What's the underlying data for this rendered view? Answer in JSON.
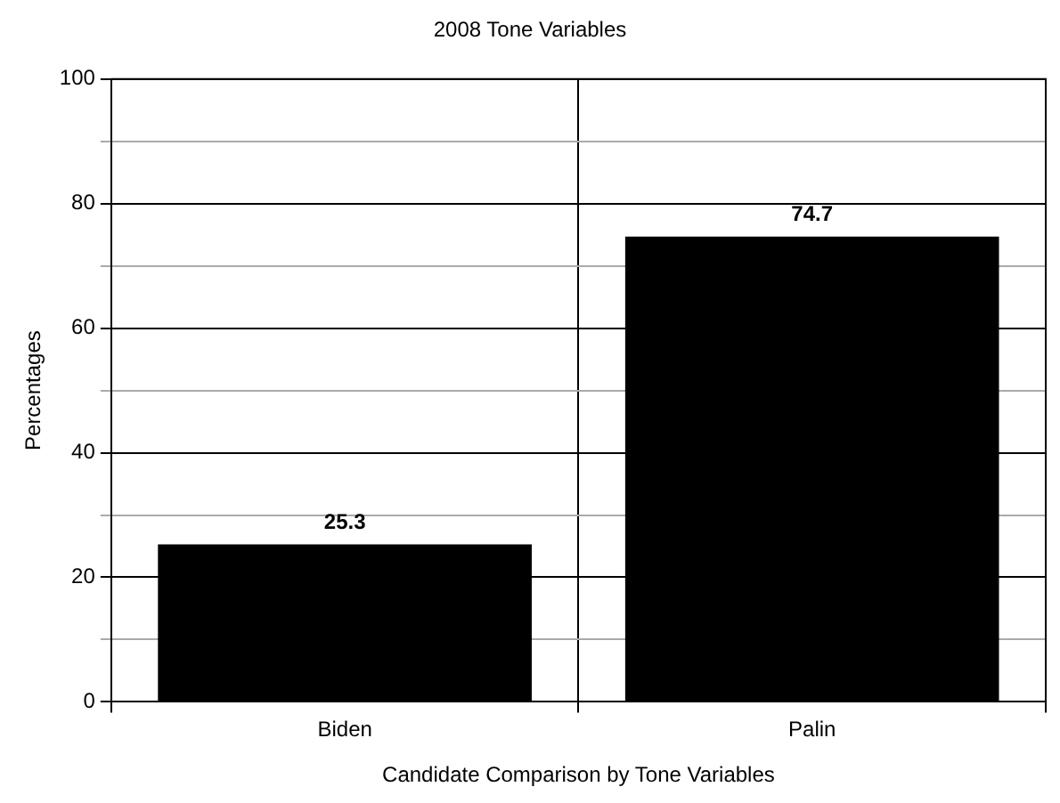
{
  "chart_data": {
    "type": "bar",
    "title": "2008 Tone Variables",
    "xlabel": "Candidate Comparison by Tone Variables",
    "ylabel": "Percentages",
    "categories": [
      "Biden",
      "Palin"
    ],
    "values": [
      25.3,
      74.7
    ],
    "color": "#000000",
    "ylim": [
      0,
      100
    ],
    "yticks": [
      0,
      {
        "value": 10,
        "label": null
      },
      20,
      {
        "value": 30,
        "label": null
      },
      40,
      {
        "value": 50,
        "label": null
      },
      60,
      {
        "value": 70,
        "label": null
      },
      80,
      {
        "value": 90,
        "label": null
      },
      100
    ],
    "grid": true,
    "data_labels": true
  }
}
